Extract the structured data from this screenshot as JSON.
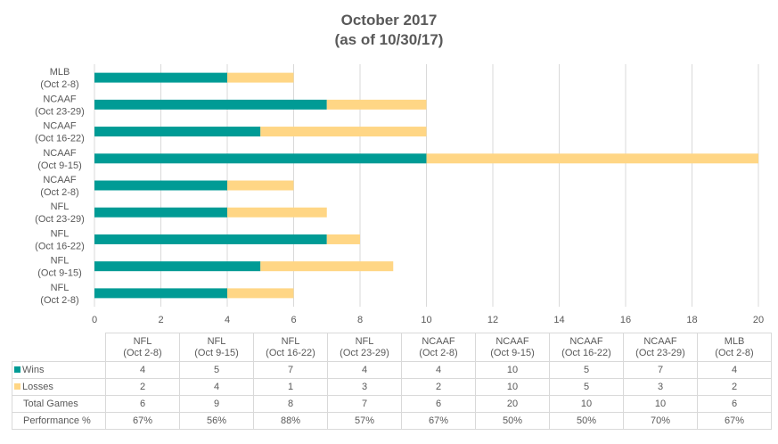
{
  "chart_data": {
    "type": "bar",
    "orientation": "horizontal",
    "stacked": true,
    "title": "October 2017",
    "subtitle": "(as of 10/30/17)",
    "categories": [
      "NFL (Oct 2-8)",
      "NFL (Oct 9-15)",
      "NFL (Oct 16-22)",
      "NFL (Oct 23-29)",
      "NCAAF (Oct 2-8)",
      "NCAAF (Oct 9-15)",
      "NCAAF (Oct 16-22)",
      "NCAAF (Oct 23-29)",
      "MLB (Oct 2-8)"
    ],
    "category_lines": [
      [
        "NFL",
        "(Oct 2-8)"
      ],
      [
        "NFL",
        "(Oct 9-15)"
      ],
      [
        "NFL",
        "(Oct 16-22)"
      ],
      [
        "NFL",
        "(Oct 23-29)"
      ],
      [
        "NCAAF",
        "(Oct 2-8)"
      ],
      [
        "NCAAF",
        "(Oct 9-15)"
      ],
      [
        "NCAAF",
        "(Oct 16-22)"
      ],
      [
        "NCAAF",
        "(Oct 23-29)"
      ],
      [
        "MLB",
        "(Oct 2-8)"
      ]
    ],
    "series": [
      {
        "name": "Wins",
        "values": [
          4,
          5,
          7,
          4,
          4,
          10,
          5,
          7,
          4
        ],
        "color": "#009b95"
      },
      {
        "name": "Losses",
        "values": [
          2,
          4,
          1,
          3,
          2,
          10,
          5,
          3,
          2
        ],
        "color": "#ffd685"
      }
    ],
    "xlim": [
      0,
      20
    ],
    "xticks": [
      "0",
      "2",
      "4",
      "6",
      "8",
      "10",
      "12",
      "14",
      "16",
      "18",
      "20"
    ],
    "grid": true,
    "legend": "data-table",
    "table": {
      "rows": [
        {
          "label": "Wins",
          "values": [
            "4",
            "5",
            "7",
            "4",
            "4",
            "10",
            "5",
            "7",
            "4"
          ],
          "key": "#009b95"
        },
        {
          "label": "Losses",
          "values": [
            "2",
            "4",
            "1",
            "3",
            "2",
            "10",
            "5",
            "3",
            "2"
          ],
          "key": "#ffd685"
        },
        {
          "label": "Total Games",
          "values": [
            "6",
            "9",
            "8",
            "7",
            "6",
            "20",
            "10",
            "10",
            "6"
          ]
        },
        {
          "label": "Performance %",
          "values": [
            "67%",
            "56%",
            "88%",
            "57%",
            "67%",
            "50%",
            "50%",
            "70%",
            "67%"
          ]
        }
      ]
    }
  }
}
